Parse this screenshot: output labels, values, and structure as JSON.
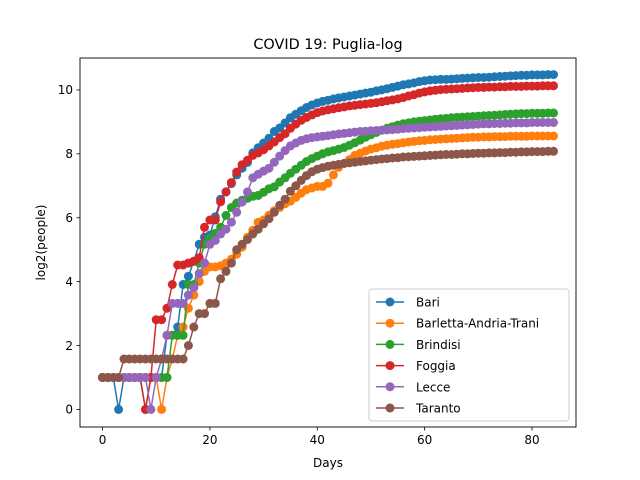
{
  "chart_data": {
    "type": "line",
    "title": "COVID 19: Puglia-log",
    "xlabel": "Days",
    "ylabel": "log2(people)",
    "xlim": [
      -4.2,
      88.2
    ],
    "ylim": [
      -0.55,
      11.0
    ],
    "xticks": [
      0,
      20,
      40,
      60,
      80
    ],
    "yticks": [
      0,
      2,
      4,
      6,
      8,
      10
    ],
    "grid": false,
    "legend_position": "lower-right",
    "series": [
      {
        "name": "Bari",
        "color": "#1f77b4",
        "x": [
          0,
          1,
          2,
          3,
          4,
          5,
          6,
          7,
          8,
          9,
          10,
          11,
          12,
          13,
          14,
          15,
          16,
          17,
          18,
          19,
          20,
          21,
          22,
          23,
          24,
          25,
          26,
          27,
          28,
          29,
          30,
          31,
          32,
          33,
          34,
          35,
          36,
          37,
          38,
          39,
          40,
          41,
          42,
          43,
          44,
          45,
          46,
          47,
          48,
          49,
          50,
          51,
          52,
          53,
          54,
          55,
          56,
          57,
          58,
          59,
          60,
          61,
          62,
          63,
          64,
          65,
          66,
          67,
          68,
          69,
          70,
          71,
          72,
          73,
          74,
          75,
          76,
          77,
          78,
          79,
          80,
          81,
          82,
          83,
          84
        ],
        "y": [
          1,
          1,
          1,
          0,
          1,
          1,
          1,
          1,
          1,
          1,
          1,
          1,
          2.32,
          2.32,
          2.58,
          3.91,
          4.17,
          4.64,
          5.17,
          5.39,
          5.46,
          6.03,
          6.58,
          6.81,
          7.07,
          7.34,
          7.55,
          7.73,
          8.03,
          8.19,
          8.34,
          8.49,
          8.7,
          8.81,
          8.97,
          9.13,
          9.24,
          9.35,
          9.45,
          9.53,
          9.59,
          9.64,
          9.68,
          9.72,
          9.75,
          9.78,
          9.81,
          9.84,
          9.87,
          9.9,
          9.93,
          9.97,
          10.0,
          10.04,
          10.08,
          10.12,
          10.16,
          10.19,
          10.22,
          10.26,
          10.29,
          10.31,
          10.32,
          10.33,
          10.33,
          10.34,
          10.35,
          10.36,
          10.37,
          10.38,
          10.39,
          10.39,
          10.4,
          10.41,
          10.42,
          10.43,
          10.44,
          10.45,
          10.46,
          10.46,
          10.47,
          10.47,
          10.47,
          10.48,
          10.48
        ]
      },
      {
        "name": "Barletta-Andria-Trani",
        "color": "#ff7f0e",
        "x": [
          0,
          1,
          2,
          3,
          4,
          5,
          6,
          7,
          8,
          9,
          10,
          11,
          12,
          13,
          14,
          15,
          16,
          17,
          18,
          19,
          20,
          21,
          22,
          23,
          24,
          25,
          26,
          27,
          28,
          29,
          30,
          31,
          32,
          33,
          34,
          35,
          36,
          37,
          38,
          39,
          40,
          41,
          42,
          43,
          44,
          45,
          46,
          47,
          48,
          49,
          50,
          51,
          52,
          53,
          54,
          55,
          56,
          57,
          58,
          59,
          60,
          61,
          62,
          63,
          64,
          65,
          66,
          67,
          68,
          69,
          70,
          71,
          72,
          73,
          74,
          75,
          76,
          77,
          78,
          79,
          80,
          81,
          82,
          83,
          84
        ],
        "y": [
          1,
          1,
          1,
          1,
          1,
          1,
          1,
          1,
          1,
          1,
          1,
          0,
          1,
          1.58,
          2.32,
          2.58,
          3.17,
          3.58,
          4.0,
          4.32,
          4.46,
          4.46,
          4.5,
          4.58,
          4.7,
          4.86,
          5.08,
          5.39,
          5.61,
          5.86,
          5.93,
          6.08,
          6.22,
          6.32,
          6.44,
          6.52,
          6.64,
          6.77,
          6.88,
          6.93,
          6.98,
          6.98,
          7.08,
          7.34,
          7.58,
          7.7,
          7.82,
          7.95,
          8.02,
          8.09,
          8.15,
          8.19,
          8.24,
          8.27,
          8.3,
          8.32,
          8.35,
          8.37,
          8.39,
          8.41,
          8.42,
          8.44,
          8.45,
          8.46,
          8.47,
          8.48,
          8.49,
          8.5,
          8.51,
          8.52,
          8.52,
          8.53,
          8.53,
          8.54,
          8.54,
          8.54,
          8.55,
          8.55,
          8.55,
          8.55,
          8.56,
          8.56,
          8.56,
          8.56,
          8.56
        ]
      },
      {
        "name": "Brindisi",
        "color": "#2ca02c",
        "x": [
          0,
          1,
          2,
          3,
          4,
          5,
          6,
          7,
          8,
          9,
          10,
          11,
          12,
          13,
          14,
          15,
          16,
          17,
          18,
          19,
          20,
          21,
          22,
          23,
          24,
          25,
          26,
          27,
          28,
          29,
          30,
          31,
          32,
          33,
          34,
          35,
          36,
          37,
          38,
          39,
          40,
          41,
          42,
          43,
          44,
          45,
          46,
          47,
          48,
          49,
          50,
          51,
          52,
          53,
          54,
          55,
          56,
          57,
          58,
          59,
          60,
          61,
          62,
          63,
          64,
          65,
          66,
          67,
          68,
          69,
          70,
          71,
          72,
          73,
          74,
          75,
          76,
          77,
          78,
          79,
          80,
          81,
          82,
          83,
          84
        ],
        "y": [
          1,
          1,
          1,
          1,
          1,
          1,
          1,
          1,
          0,
          1,
          1,
          1,
          1,
          2.32,
          2.32,
          2.32,
          3.91,
          3.91,
          4.58,
          5.17,
          5.36,
          5.51,
          5.7,
          6.07,
          6.32,
          6.46,
          6.55,
          6.61,
          6.67,
          6.7,
          6.8,
          6.91,
          6.97,
          7.12,
          7.25,
          7.39,
          7.52,
          7.64,
          7.76,
          7.85,
          7.93,
          8.0,
          8.06,
          8.1,
          8.15,
          8.2,
          8.27,
          8.35,
          8.43,
          8.52,
          8.6,
          8.67,
          8.74,
          8.8,
          8.85,
          8.9,
          8.94,
          8.97,
          9.0,
          9.02,
          9.04,
          9.06,
          9.08,
          9.1,
          9.11,
          9.13,
          9.14,
          9.15,
          9.16,
          9.17,
          9.18,
          9.19,
          9.2,
          9.21,
          9.22,
          9.23,
          9.24,
          9.25,
          9.26,
          9.26,
          9.27,
          9.27,
          9.27,
          9.28,
          9.28
        ]
      },
      {
        "name": "Foggia",
        "color": "#d62728",
        "x": [
          0,
          1,
          2,
          3,
          4,
          5,
          6,
          7,
          8,
          9,
          10,
          11,
          12,
          13,
          14,
          15,
          16,
          17,
          18,
          19,
          20,
          21,
          22,
          23,
          24,
          25,
          26,
          27,
          28,
          29,
          30,
          31,
          32,
          33,
          34,
          35,
          36,
          37,
          38,
          39,
          40,
          41,
          42,
          43,
          44,
          45,
          46,
          47,
          48,
          49,
          50,
          51,
          52,
          53,
          54,
          55,
          56,
          57,
          58,
          59,
          60,
          61,
          62,
          63,
          64,
          65,
          66,
          67,
          68,
          69,
          70,
          71,
          72,
          73,
          74,
          75,
          76,
          77,
          78,
          79,
          80,
          81,
          82,
          83,
          84
        ],
        "y": [
          1,
          1,
          1,
          1,
          1,
          1,
          1,
          1,
          0,
          1,
          2.81,
          2.81,
          3.17,
          3.91,
          4.52,
          4.52,
          4.58,
          4.64,
          4.75,
          5.7,
          5.93,
          5.93,
          6.5,
          6.81,
          7.1,
          7.43,
          7.66,
          7.8,
          7.95,
          8.03,
          8.13,
          8.25,
          8.37,
          8.51,
          8.63,
          8.8,
          8.93,
          9.05,
          9.14,
          9.22,
          9.29,
          9.34,
          9.38,
          9.41,
          9.44,
          9.47,
          9.5,
          9.52,
          9.54,
          9.56,
          9.58,
          9.6,
          9.63,
          9.66,
          9.69,
          9.72,
          9.76,
          9.81,
          9.85,
          9.9,
          9.94,
          9.97,
          9.99,
          10.01,
          10.02,
          10.03,
          10.04,
          10.05,
          10.06,
          10.07,
          10.08,
          10.08,
          10.09,
          10.09,
          10.1,
          10.1,
          10.11,
          10.11,
          10.11,
          10.12,
          10.12,
          10.12,
          10.13,
          10.13,
          10.13
        ]
      },
      {
        "name": "Lecce",
        "color": "#9467bd",
        "x": [
          0,
          1,
          2,
          3,
          4,
          5,
          6,
          7,
          8,
          9,
          10,
          11,
          12,
          13,
          14,
          15,
          16,
          17,
          18,
          19,
          20,
          21,
          22,
          23,
          24,
          25,
          26,
          27,
          28,
          29,
          30,
          31,
          32,
          33,
          34,
          35,
          36,
          37,
          38,
          39,
          40,
          41,
          42,
          43,
          44,
          45,
          46,
          47,
          48,
          49,
          50,
          51,
          52,
          53,
          54,
          55,
          56,
          57,
          58,
          59,
          60,
          61,
          62,
          63,
          64,
          65,
          66,
          67,
          68,
          69,
          70,
          71,
          72,
          73,
          74,
          75,
          76,
          77,
          78,
          79,
          80,
          81,
          82,
          83,
          84
        ],
        "y": [
          1,
          1,
          1,
          1,
          1,
          1,
          1,
          1,
          1,
          0,
          1,
          1.58,
          2.32,
          3.32,
          3.32,
          3.32,
          3.58,
          3.81,
          4.25,
          4.58,
          5.17,
          5.29,
          5.49,
          5.64,
          5.86,
          6.17,
          6.49,
          6.81,
          7.25,
          7.36,
          7.46,
          7.55,
          7.74,
          7.93,
          8.1,
          8.25,
          8.34,
          8.42,
          8.47,
          8.51,
          8.53,
          8.55,
          8.57,
          8.6,
          8.62,
          8.64,
          8.66,
          8.68,
          8.7,
          8.71,
          8.72,
          8.73,
          8.74,
          8.75,
          8.76,
          8.77,
          8.79,
          8.8,
          8.81,
          8.82,
          8.83,
          8.84,
          8.85,
          8.86,
          8.87,
          8.88,
          8.89,
          8.9,
          8.91,
          8.92,
          8.93,
          8.94,
          8.94,
          8.95,
          8.95,
          8.96,
          8.96,
          8.97,
          8.97,
          8.97,
          8.98,
          8.98,
          8.98,
          8.98,
          8.98
        ]
      },
      {
        "name": "Taranto",
        "color": "#8c564b",
        "x": [
          0,
          1,
          2,
          3,
          4,
          5,
          6,
          7,
          8,
          9,
          10,
          11,
          12,
          13,
          14,
          15,
          16,
          17,
          18,
          19,
          20,
          21,
          22,
          23,
          24,
          25,
          26,
          27,
          28,
          29,
          30,
          31,
          32,
          33,
          34,
          35,
          36,
          37,
          38,
          39,
          40,
          41,
          42,
          43,
          44,
          45,
          46,
          47,
          48,
          49,
          50,
          51,
          52,
          53,
          54,
          55,
          56,
          57,
          58,
          59,
          60,
          61,
          62,
          63,
          64,
          65,
          66,
          67,
          68,
          69,
          70,
          71,
          72,
          73,
          74,
          75,
          76,
          77,
          78,
          79,
          80,
          81,
          82,
          83,
          84
        ],
        "y": [
          1,
          1,
          1,
          1,
          1.58,
          1.58,
          1.58,
          1.58,
          1.58,
          1.58,
          1.58,
          1.58,
          1.58,
          1.58,
          1.58,
          1.58,
          2.0,
          2.58,
          3.0,
          3.0,
          3.32,
          3.32,
          4.09,
          4.32,
          4.58,
          5.0,
          5.17,
          5.32,
          5.49,
          5.64,
          5.81,
          5.97,
          6.17,
          6.39,
          6.58,
          6.83,
          7.0,
          7.17,
          7.32,
          7.44,
          7.52,
          7.57,
          7.61,
          7.64,
          7.67,
          7.7,
          7.72,
          7.74,
          7.76,
          7.78,
          7.8,
          7.82,
          7.84,
          7.85,
          7.87,
          7.88,
          7.9,
          7.91,
          7.92,
          7.93,
          7.94,
          7.95,
          7.96,
          7.97,
          7.98,
          7.98,
          7.99,
          8.0,
          8.0,
          8.01,
          8.02,
          8.02,
          8.03,
          8.03,
          8.04,
          8.04,
          8.05,
          8.05,
          8.06,
          8.06,
          8.07,
          8.07,
          8.07,
          8.08,
          8.08
        ]
      }
    ]
  }
}
